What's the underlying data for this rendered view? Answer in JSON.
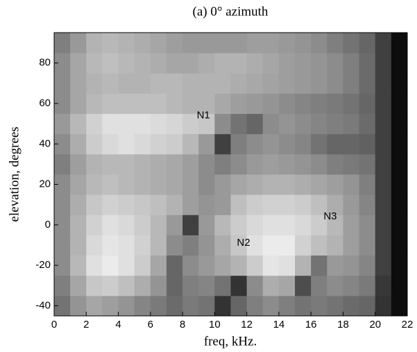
{
  "chart_data": {
    "type": "heatmap",
    "title": "(a) 0° azimuth",
    "xlabel": "freq, kHz.",
    "ylabel": "elevation, degrees",
    "colormap": "gray",
    "x_bins": [
      0,
      1,
      2,
      3,
      4,
      5,
      6,
      7,
      8,
      9,
      10,
      11,
      12,
      13,
      14,
      15,
      16,
      17,
      18,
      19,
      20,
      21,
      22
    ],
    "y_bins": [
      -45,
      -35,
      -25,
      -15,
      -5,
      5,
      15,
      25,
      35,
      45,
      55,
      65,
      75,
      85,
      95
    ],
    "z": [
      [
        45,
        58,
        65,
        62,
        58,
        52,
        48,
        42,
        48,
        45,
        20,
        40,
        50,
        55,
        50,
        45,
        48,
        45,
        42,
        40,
        20,
        5
      ],
      [
        50,
        65,
        78,
        80,
        75,
        68,
        58,
        40,
        50,
        52,
        45,
        20,
        55,
        68,
        65,
        30,
        50,
        55,
        52,
        48,
        22,
        5
      ],
      [
        55,
        72,
        88,
        92,
        88,
        80,
        65,
        40,
        55,
        60,
        65,
        70,
        80,
        90,
        88,
        70,
        45,
        60,
        58,
        52,
        25,
        5
      ],
      [
        55,
        70,
        85,
        90,
        88,
        82,
        72,
        55,
        50,
        58,
        68,
        78,
        88,
        92,
        92,
        82,
        75,
        70,
        62,
        55,
        25,
        5
      ],
      [
        55,
        70,
        82,
        88,
        85,
        80,
        72,
        60,
        25,
        60,
        72,
        80,
        85,
        88,
        88,
        85,
        80,
        72,
        62,
        55,
        25,
        5
      ],
      [
        55,
        68,
        78,
        82,
        80,
        78,
        75,
        70,
        62,
        58,
        60,
        75,
        80,
        82,
        82,
        80,
        75,
        68,
        60,
        52,
        25,
        5
      ],
      [
        55,
        65,
        72,
        75,
        72,
        70,
        68,
        66,
        62,
        55,
        60,
        65,
        68,
        70,
        70,
        68,
        65,
        62,
        58,
        50,
        25,
        5
      ],
      [
        50,
        62,
        70,
        72,
        72,
        70,
        68,
        66,
        62,
        55,
        50,
        55,
        60,
        62,
        60,
        58,
        55,
        50,
        48,
        45,
        25,
        5
      ],
      [
        55,
        68,
        80,
        85,
        88,
        85,
        82,
        80,
        72,
        60,
        25,
        50,
        55,
        58,
        55,
        52,
        45,
        40,
        40,
        38,
        25,
        5
      ],
      [
        60,
        72,
        82,
        88,
        88,
        88,
        86,
        84,
        80,
        78,
        55,
        45,
        40,
        55,
        58,
        55,
        52,
        50,
        48,
        42,
        25,
        5
      ],
      [
        55,
        65,
        72,
        75,
        75,
        75,
        75,
        72,
        70,
        70,
        66,
        62,
        60,
        58,
        55,
        52,
        50,
        48,
        45,
        40,
        25,
        5
      ],
      [
        55,
        65,
        70,
        72,
        70,
        70,
        72,
        72,
        70,
        70,
        70,
        68,
        66,
        64,
        62,
        60,
        58,
        55,
        50,
        42,
        25,
        5
      ],
      [
        55,
        65,
        72,
        75,
        72,
        70,
        68,
        65,
        65,
        68,
        70,
        70,
        68,
        65,
        62,
        60,
        58,
        55,
        50,
        42,
        25,
        5
      ],
      [
        50,
        60,
        70,
        72,
        70,
        68,
        65,
        62,
        60,
        60,
        60,
        60,
        62,
        62,
        60,
        58,
        55,
        50,
        45,
        40,
        25,
        5
      ]
    ],
    "xlim": [
      0,
      22
    ],
    "ylim": [
      -45,
      95
    ],
    "xticks": [
      0,
      2,
      4,
      6,
      8,
      10,
      12,
      14,
      16,
      18,
      20,
      22
    ],
    "yticks": [
      -40,
      -20,
      0,
      20,
      40,
      60,
      80
    ],
    "annotations": [
      {
        "text": "N1",
        "x": 9.3,
        "y": 54
      },
      {
        "text": "N2",
        "x": 11.8,
        "y": -9
      },
      {
        "text": "N3",
        "x": 17.2,
        "y": 4
      }
    ]
  }
}
